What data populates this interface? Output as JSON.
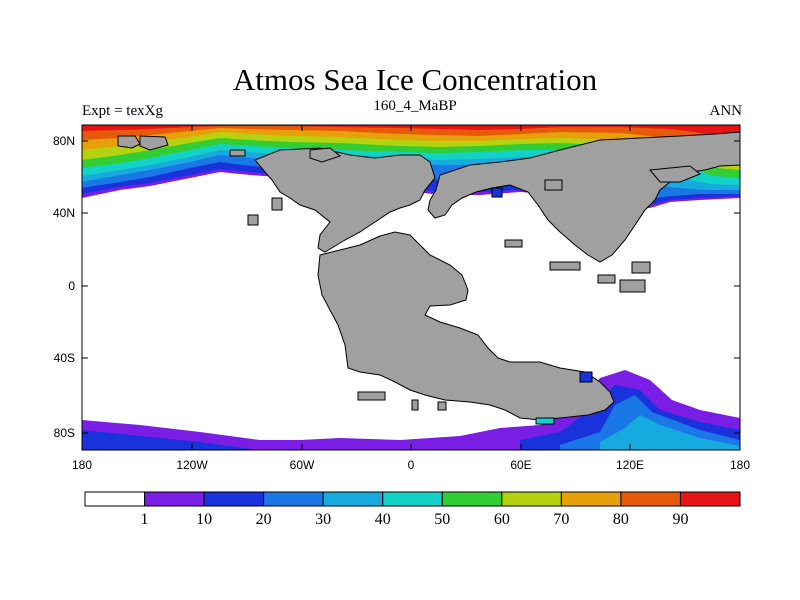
{
  "title": "Atmos Sea Ice Concentration",
  "expt": "Expt = texXg",
  "period": "160_4_MaBP",
  "season": "ANN",
  "lat_labels": [
    "80N",
    "40N",
    "0",
    "40S",
    "80S"
  ],
  "lon_labels": [
    "180",
    "120W",
    "60W",
    "0",
    "60E",
    "120E",
    "180"
  ],
  "colorbar": {
    "levels": [
      "1",
      "10",
      "20",
      "30",
      "40",
      "50",
      "60",
      "70",
      "80",
      "90"
    ],
    "colors": [
      "#ffffff",
      "#7a1ee6",
      "#1a32dc",
      "#1a78e6",
      "#17aade",
      "#12d2c8",
      "#32cd32",
      "#b4d20f",
      "#e6a00a",
      "#e65a0a",
      "#e61414"
    ]
  },
  "colors": {
    "land": "#a0a0a0",
    "coast": "#000000"
  }
}
